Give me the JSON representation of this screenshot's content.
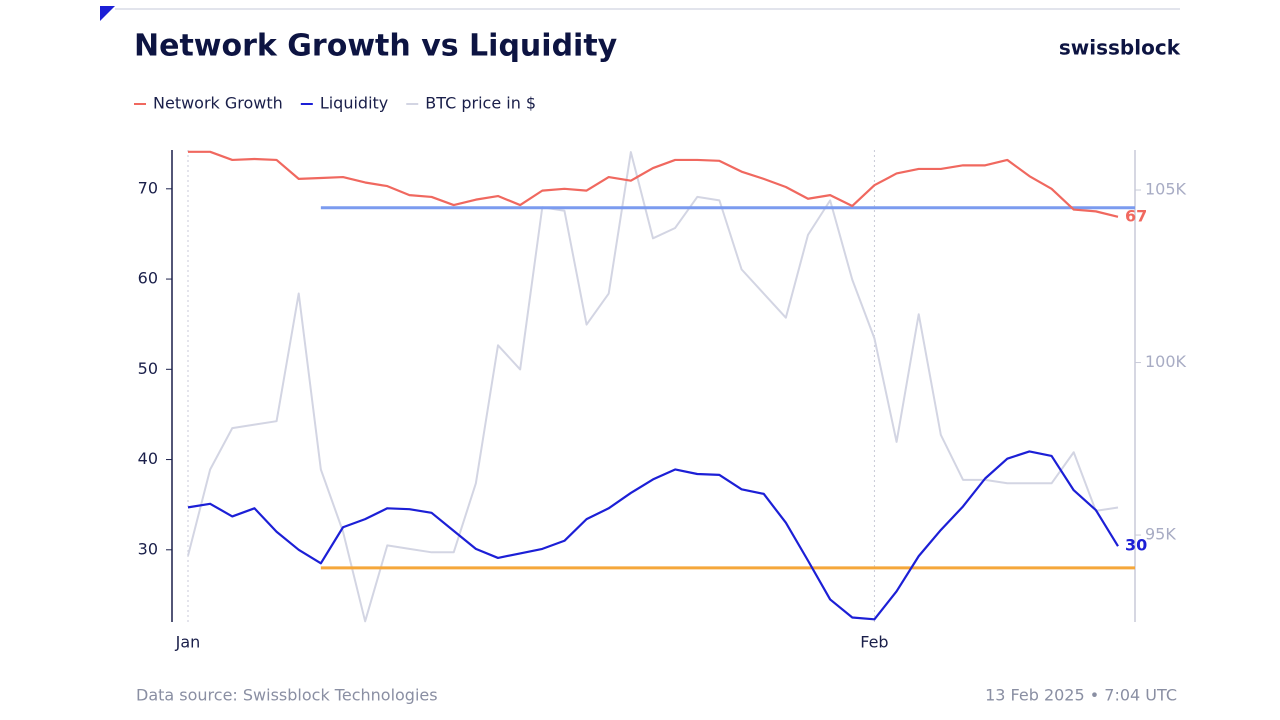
{
  "chart_data": {
    "type": "line",
    "title": "Network Growth vs Liquidity",
    "brand": "swissblock",
    "source": "Data source: Swissblock Technologies",
    "timestamp": "13 Feb 2025 • 7:04 UTC",
    "categories": [
      "Jan",
      null,
      null,
      null,
      null,
      null,
      null,
      null,
      null,
      null,
      null,
      null,
      null,
      null,
      null,
      null,
      null,
      null,
      null,
      null,
      null,
      null,
      null,
      null,
      null,
      null,
      null,
      null,
      null,
      null,
      null,
      "Feb",
      null,
      null,
      null,
      null,
      null,
      null,
      null,
      null,
      null,
      null,
      null
    ],
    "ylim": [
      22,
      74.3
    ],
    "yticks": [
      30,
      40,
      50,
      60,
      70
    ],
    "y2lim": [
      92480,
      106160
    ],
    "y2ticks": [
      {
        "value": 95000,
        "label": "95K"
      },
      {
        "value": 100000,
        "label": "100K"
      },
      {
        "value": 105000,
        "label": "105K"
      }
    ],
    "series": [
      {
        "name": "Network Growth",
        "color": "#f0685f",
        "values": [
          74.1,
          74.1,
          73.2,
          73.3,
          73.2,
          71.1,
          71.2,
          71.3,
          70.7,
          70.3,
          69.3,
          69.1,
          68.2,
          68.8,
          69.2,
          68.2,
          69.8,
          70.0,
          69.8,
          71.3,
          70.9,
          72.3,
          73.2,
          73.2,
          73.1,
          71.9,
          71.1,
          70.2,
          68.9,
          69.3,
          68.1,
          70.4,
          71.7,
          72.2,
          72.2,
          72.6,
          72.6,
          73.2,
          71.4,
          70.0,
          67.7,
          67.5,
          66.9
        ],
        "value_labels": [
          null,
          null,
          null,
          null,
          null,
          null,
          null,
          null,
          null,
          null,
          null,
          null,
          null,
          null,
          null,
          null,
          null,
          null,
          null,
          null,
          null,
          null,
          null,
          null,
          null,
          null,
          null,
          null,
          null,
          null,
          null,
          null,
          null,
          null,
          null,
          null,
          null,
          null,
          null,
          null,
          null,
          null,
          "67"
        ]
      },
      {
        "name": "Liquidity",
        "color": "#1c1fd6",
        "values": [
          34.7,
          35.1,
          33.7,
          34.6,
          32.0,
          30.0,
          28.5,
          32.5,
          33.4,
          34.6,
          34.5,
          34.1,
          32.1,
          30.1,
          29.1,
          29.6,
          30.1,
          31.0,
          33.4,
          34.6,
          36.3,
          37.8,
          38.9,
          38.4,
          38.3,
          36.7,
          36.2,
          33.0,
          28.8,
          24.5,
          22.5,
          22.3,
          25.4,
          29.3,
          32.2,
          34.8,
          37.9,
          40.1,
          40.9,
          40.4,
          36.6,
          34.4,
          30.4
        ],
        "value_labels": [
          null,
          null,
          null,
          null,
          null,
          null,
          null,
          null,
          null,
          null,
          null,
          null,
          null,
          null,
          null,
          null,
          null,
          null,
          null,
          null,
          null,
          null,
          null,
          null,
          null,
          null,
          null,
          null,
          null,
          null,
          null,
          null,
          null,
          null,
          null,
          null,
          null,
          null,
          null,
          null,
          null,
          null,
          "30"
        ]
      },
      {
        "name": "BTC price in $",
        "color": "#d3d5e3",
        "axis": "y2",
        "values": [
          94400,
          96900,
          98100,
          98200,
          98300,
          102000,
          96900,
          95100,
          92500,
          94700,
          94600,
          94500,
          94500,
          96500,
          100500,
          99800,
          104500,
          104400,
          101100,
          102000,
          106100,
          103600,
          103900,
          104800,
          104700,
          102700,
          102000,
          101300,
          103700,
          104700,
          102400,
          100700,
          97700,
          101400,
          97900,
          96600,
          96600,
          96500,
          96500,
          96500,
          97400,
          95700,
          95800
        ]
      }
    ],
    "reference_lines": [
      {
        "value": 67.9,
        "color": "#7b9bef",
        "start_index": 6
      },
      {
        "value": 28,
        "color": "#f5a73b",
        "start_index": 6
      }
    ]
  }
}
